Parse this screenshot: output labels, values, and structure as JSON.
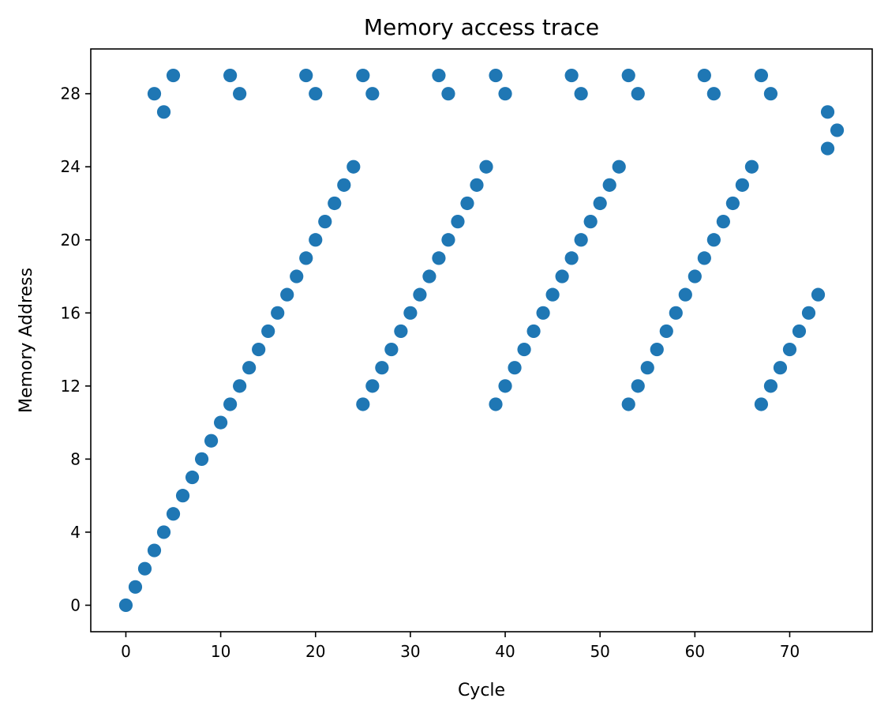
{
  "chart_data": {
    "type": "scatter",
    "title": "Memory access trace",
    "xlabel": "Cycle",
    "ylabel": "Memory Address",
    "xlim": [
      -3.7,
      78.7
    ],
    "ylim": [
      -1.45,
      30.45
    ],
    "xticks": [
      0,
      10,
      20,
      30,
      40,
      50,
      60,
      70
    ],
    "yticks": [
      0,
      4,
      8,
      12,
      16,
      20,
      24,
      28
    ],
    "grid": false,
    "legend": "none",
    "marker_color": "#1f77b4",
    "points": [
      [
        0,
        0
      ],
      [
        1,
        1
      ],
      [
        2,
        2
      ],
      [
        3,
        3
      ],
      [
        4,
        4
      ],
      [
        5,
        5
      ],
      [
        6,
        6
      ],
      [
        7,
        7
      ],
      [
        8,
        8
      ],
      [
        9,
        9
      ],
      [
        10,
        10
      ],
      [
        11,
        11
      ],
      [
        12,
        12
      ],
      [
        13,
        13
      ],
      [
        14,
        14
      ],
      [
        15,
        15
      ],
      [
        16,
        16
      ],
      [
        17,
        17
      ],
      [
        18,
        18
      ],
      [
        19,
        19
      ],
      [
        20,
        20
      ],
      [
        21,
        21
      ],
      [
        22,
        22
      ],
      [
        23,
        23
      ],
      [
        24,
        24
      ],
      [
        3,
        28
      ],
      [
        4,
        27
      ],
      [
        5,
        29
      ],
      [
        11,
        29
      ],
      [
        12,
        28
      ],
      [
        19,
        29
      ],
      [
        20,
        28
      ],
      [
        25,
        29
      ],
      [
        26,
        28
      ],
      [
        33,
        29
      ],
      [
        34,
        28
      ],
      [
        39,
        29
      ],
      [
        40,
        28
      ],
      [
        47,
        29
      ],
      [
        48,
        28
      ],
      [
        53,
        29
      ],
      [
        54,
        28
      ],
      [
        61,
        29
      ],
      [
        62,
        28
      ],
      [
        67,
        29
      ],
      [
        68,
        28
      ],
      [
        74,
        27
      ],
      [
        74,
        25
      ],
      [
        75,
        26
      ],
      [
        25,
        11
      ],
      [
        26,
        12
      ],
      [
        27,
        13
      ],
      [
        28,
        14
      ],
      [
        29,
        15
      ],
      [
        30,
        16
      ],
      [
        31,
        17
      ],
      [
        32,
        18
      ],
      [
        33,
        19
      ],
      [
        34,
        20
      ],
      [
        35,
        21
      ],
      [
        36,
        22
      ],
      [
        37,
        23
      ],
      [
        38,
        24
      ],
      [
        39,
        11
      ],
      [
        40,
        12
      ],
      [
        41,
        13
      ],
      [
        42,
        14
      ],
      [
        43,
        15
      ],
      [
        44,
        16
      ],
      [
        45,
        17
      ],
      [
        46,
        18
      ],
      [
        47,
        19
      ],
      [
        48,
        20
      ],
      [
        49,
        21
      ],
      [
        50,
        22
      ],
      [
        51,
        23
      ],
      [
        52,
        24
      ],
      [
        53,
        11
      ],
      [
        54,
        12
      ],
      [
        55,
        13
      ],
      [
        56,
        14
      ],
      [
        57,
        15
      ],
      [
        58,
        16
      ],
      [
        59,
        17
      ],
      [
        60,
        18
      ],
      [
        61,
        19
      ],
      [
        62,
        20
      ],
      [
        63,
        21
      ],
      [
        64,
        22
      ],
      [
        65,
        23
      ],
      [
        66,
        24
      ],
      [
        67,
        11
      ],
      [
        68,
        12
      ],
      [
        69,
        13
      ],
      [
        70,
        14
      ],
      [
        71,
        15
      ],
      [
        72,
        16
      ],
      [
        73,
        17
      ]
    ]
  }
}
